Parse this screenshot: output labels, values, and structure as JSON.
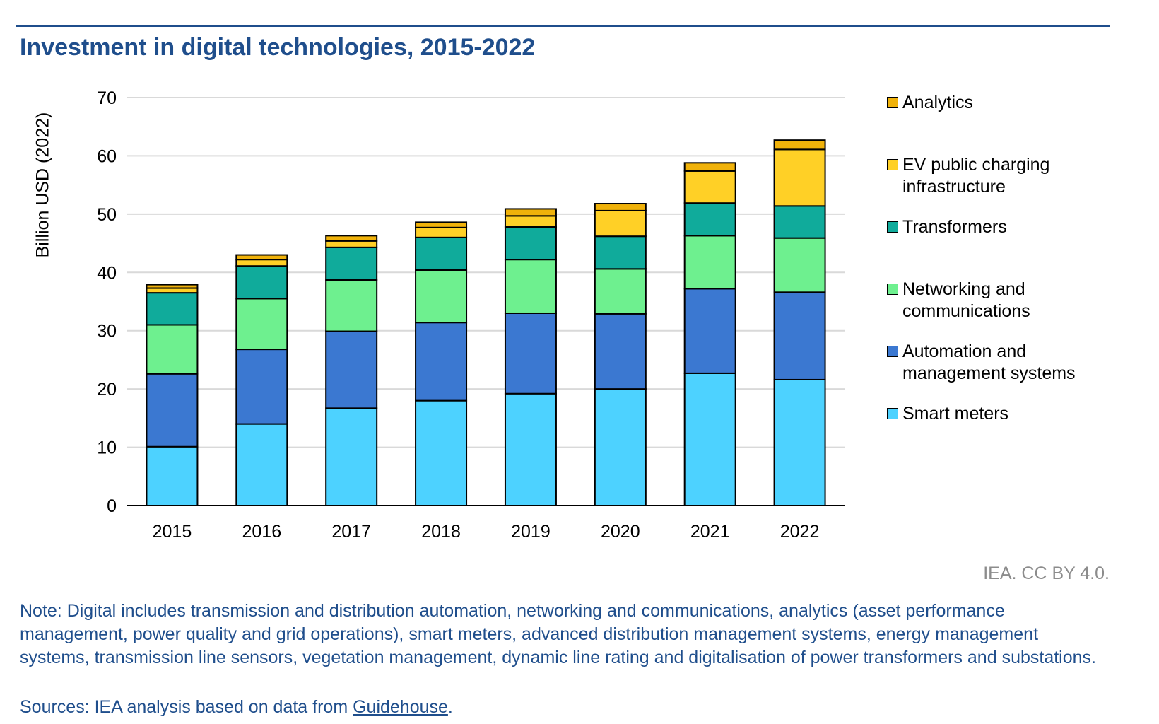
{
  "chart_data": {
    "type": "bar",
    "stacked": true,
    "title": "Investment in digital technologies, 2015-2022",
    "xlabel": "",
    "ylabel": "Billion USD (2022)",
    "ylim": [
      0,
      70
    ],
    "yticks": [
      0,
      10,
      20,
      30,
      40,
      50,
      60,
      70
    ],
    "grid": true,
    "legend_position": "right",
    "categories": [
      "2015",
      "2016",
      "2017",
      "2018",
      "2019",
      "2020",
      "2021",
      "2022"
    ],
    "series": [
      {
        "name": "Smart meters",
        "color": "#4dd2ff",
        "values": [
          10.1,
          14.0,
          16.7,
          18.0,
          19.2,
          20.0,
          22.7,
          21.6
        ]
      },
      {
        "name": "Automation and management systems",
        "color": "#3b78d1",
        "values": [
          12.5,
          12.8,
          13.2,
          13.4,
          13.8,
          12.9,
          14.5,
          15.0
        ]
      },
      {
        "name": "Networking and communications",
        "color": "#6ef08f",
        "values": [
          8.4,
          8.7,
          8.8,
          9.0,
          9.2,
          7.7,
          9.1,
          9.3
        ]
      },
      {
        "name": "Transformers",
        "color": "#10ab9b",
        "values": [
          5.5,
          5.6,
          5.6,
          5.6,
          5.6,
          5.6,
          5.6,
          5.5
        ]
      },
      {
        "name": "EV public charging infrastructure",
        "color": "#ffd026",
        "values": [
          0.8,
          1.1,
          1.1,
          1.7,
          1.9,
          4.4,
          5.5,
          9.7
        ]
      },
      {
        "name": "Analytics",
        "color": "#f0b20a",
        "values": [
          0.6,
          0.8,
          0.9,
          0.9,
          1.2,
          1.2,
          1.4,
          1.6
        ]
      }
    ]
  },
  "legend": {
    "items": [
      {
        "label": "Analytics",
        "color": "#f0b20a"
      },
      {
        "label": "EV public charging infrastructure",
        "color": "#ffd026"
      },
      {
        "label": "Transformers",
        "color": "#10ab9b"
      },
      {
        "label": "Networking and communications",
        "color": "#6ef08f"
      },
      {
        "label": "Automation and management systems",
        "color": "#3b78d1"
      },
      {
        "label": "Smart meters",
        "color": "#4dd2ff"
      }
    ]
  },
  "credit": "IEA. CC BY 4.0.",
  "note": "Note: Digital includes transmission and distribution automation, networking and communications, analytics (asset performance management, power quality and grid operations), smart meters, advanced distribution management systems, energy management systems, transmission line sensors, vegetation management, dynamic line rating and digitalisation of power transformers and substations.",
  "sources": {
    "prefix": "Sources: IEA analysis based on data from ",
    "link_text": "Guidehouse",
    "suffix": "."
  }
}
